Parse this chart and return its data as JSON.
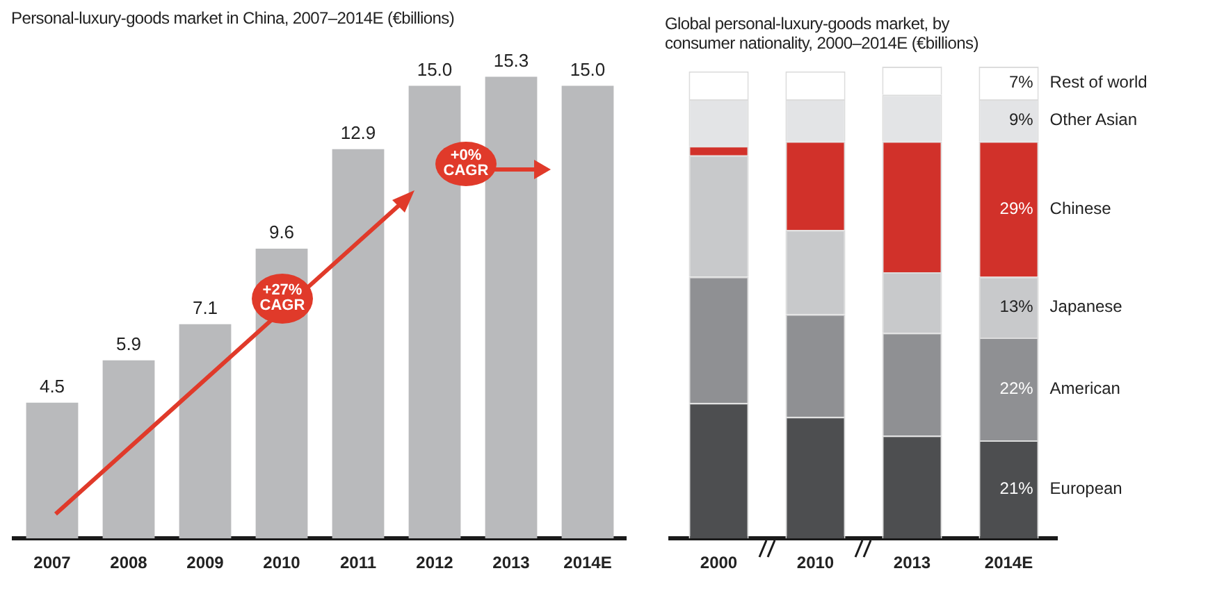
{
  "chart_data": [
    {
      "type": "bar",
      "title": "Personal-luxury-goods market in China, 2007–2014E (€billions)",
      "categories": [
        "2007",
        "2008",
        "2009",
        "2010",
        "2011",
        "2012",
        "2013",
        "2014E"
      ],
      "values": [
        4.5,
        5.9,
        7.1,
        9.6,
        12.9,
        15.0,
        15.3,
        15.0
      ],
      "value_labels": [
        "4.5",
        "5.9",
        "7.1",
        "9.6",
        "12.9",
        "15.0",
        "15.3",
        "15.0"
      ],
      "color": "#b9babc",
      "tick_labels": "x",
      "annotations": [
        "+27% CAGR",
        "+0% CAGR"
      ]
    },
    {
      "type": "bar",
      "title": "Global personal-luxury-goods market, by consumer nationality, 2000–2014E (€billions)",
      "categories": [
        "2000",
        "2010",
        "2013",
        "2014E"
      ],
      "stacked": true,
      "tick_labels": "x",
      "series": [
        {
          "name": "European",
          "color": "#4d4e50",
          "values": [
            29,
            26,
            22,
            21
          ],
          "value_labels": [
            null,
            null,
            null,
            "21%"
          ]
        },
        {
          "name": "American",
          "color": "#8f9093",
          "values": [
            27,
            22,
            22,
            22
          ],
          "value_labels": [
            null,
            null,
            null,
            "22%"
          ]
        },
        {
          "name": "Japanese",
          "color": "#c8c9cb",
          "values": [
            26,
            18,
            13,
            13
          ],
          "value_labels": [
            null,
            null,
            null,
            "13%"
          ]
        },
        {
          "name": "Chinese",
          "color": "#d1312a",
          "values": [
            2,
            19,
            28,
            29
          ],
          "value_labels": [
            null,
            null,
            null,
            "29%"
          ]
        },
        {
          "name": "Other Asian",
          "color": "#e3e4e6",
          "values": [
            10,
            9,
            10,
            9
          ],
          "value_labels": [
            null,
            null,
            null,
            "9%"
          ]
        },
        {
          "name": "Rest of world",
          "color": "#ffffff",
          "values": [
            6,
            6,
            6,
            7
          ],
          "value_labels": [
            null,
            null,
            null,
            "7%"
          ]
        }
      ]
    }
  ]
}
